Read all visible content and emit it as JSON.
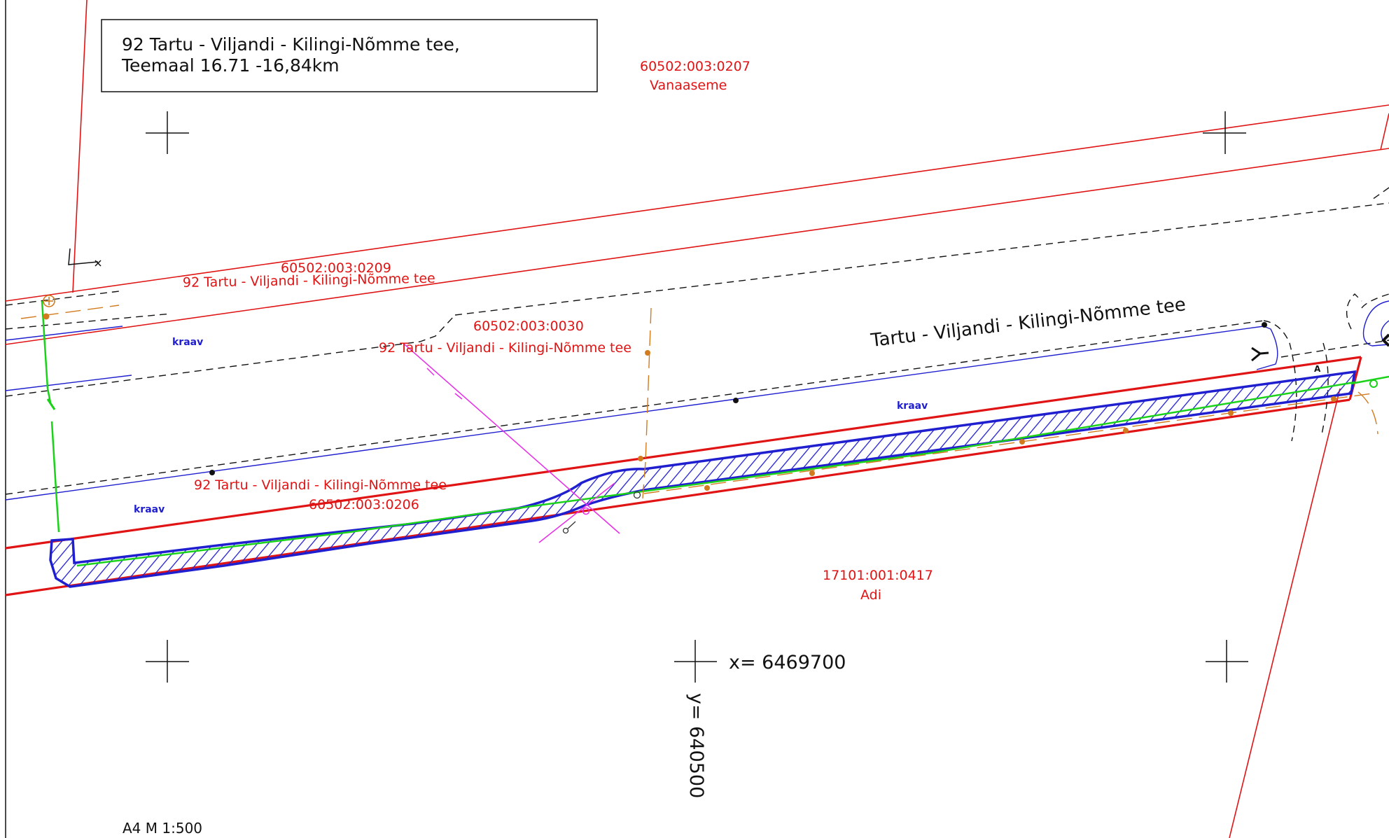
{
  "title_box": {
    "line1": "92 Tartu - Viljandi - Kilingi-Nõmme tee,",
    "line2": "Teemaal 16.71 -16,84km"
  },
  "parcels": {
    "p207_id": "60502:003:0207",
    "p207_name": "Vanaaseme",
    "p209_id": "60502:003:0209",
    "p209_road": "92 Tartu - Viljandi - Kilingi-Nõmme tee",
    "p030_id": "60502:003:0030",
    "p030_road": "92 Tartu - Viljandi - Kilingi-Nõmme tee",
    "p206_road": "92 Tartu - Viljandi - Kilingi-Nõmme tee",
    "p206_id": "60502:003:0206",
    "p417_id": "17101:001:0417",
    "p417_name": "Adi"
  },
  "road_name": "Tartu - Viljandi - Kilingi-Nõmme tee",
  "ditch_labels": {
    "left_upper": "kraav",
    "left_lower": "kraav",
    "right": "kraav"
  },
  "marker_a": "A",
  "coords": {
    "x_label": "x= 6469700",
    "y_label": "y= 640500"
  },
  "scale": "A4 M 1:500",
  "colors": {
    "boundary": "#e01414",
    "ditch": "#1f1fd0",
    "hatch": "#1f1fd0",
    "green_line": "#19d219",
    "orange_line": "#d27a1e",
    "magenta_line": "#e62ee6"
  }
}
